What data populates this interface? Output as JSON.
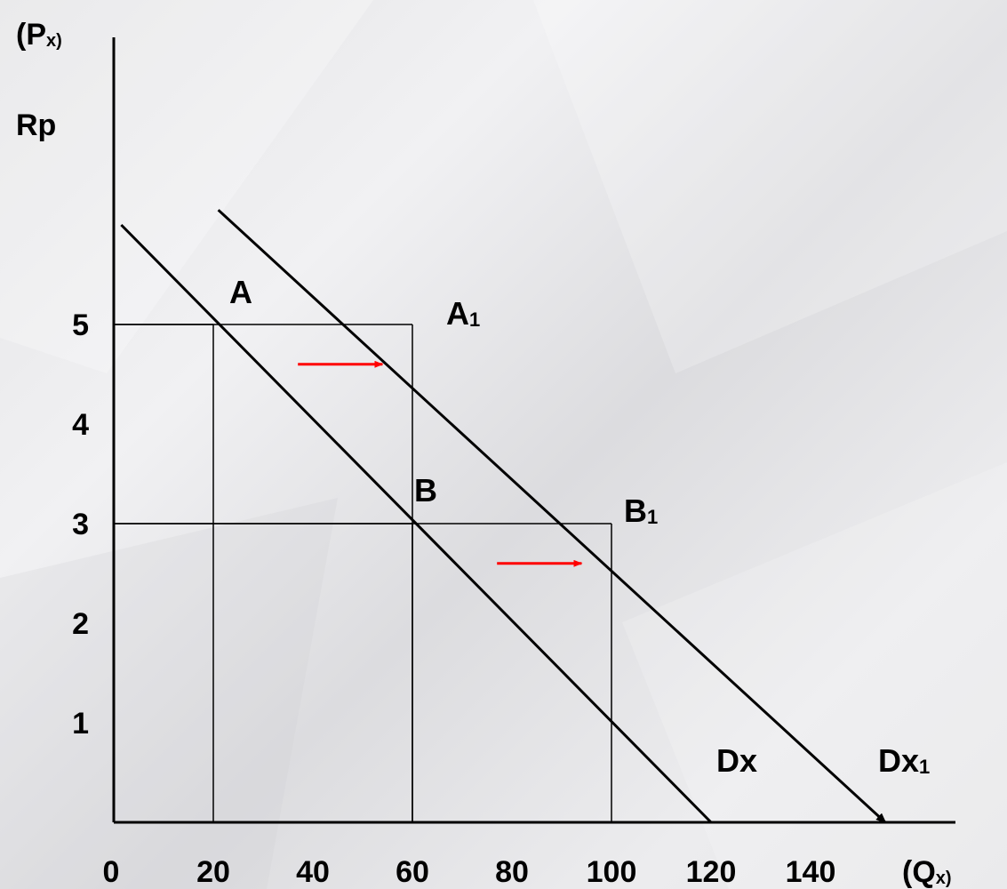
{
  "chart_data": {
    "type": "line",
    "ylabel": {
      "main": "(P",
      "sub": "x)"
    },
    "currency": "Rp",
    "xlabel": {
      "main": "(Q",
      "sub": "x)"
    },
    "x_ticks": [
      "0",
      "20",
      "40",
      "60",
      "80",
      "100",
      "120",
      "140"
    ],
    "y_ticks": [
      "1",
      "2",
      "3",
      "4",
      "5"
    ],
    "xlim": [
      0,
      150
    ],
    "ylim": [
      0,
      6.3
    ],
    "series": [
      {
        "name": "Dx",
        "label_main": "Dx",
        "label_sub": "",
        "points": [
          [
            1.5,
            6.0
          ],
          [
            120,
            0.0
          ]
        ],
        "arrow": false
      },
      {
        "name": "Dx1",
        "label_main": "Dx",
        "label_sub": "1",
        "points": [
          [
            21,
            6.15
          ],
          [
            155,
            0.0
          ]
        ],
        "arrow": true
      }
    ],
    "points": [
      {
        "label_main": "A",
        "label_sub": "",
        "x": 20,
        "y": 5
      },
      {
        "label_main": "A",
        "label_sub": "1",
        "x": 60,
        "y": 5
      },
      {
        "label_main": "B",
        "label_sub": "",
        "x": 60,
        "y": 3
      },
      {
        "label_main": "B",
        "label_sub": "1",
        "x": 100,
        "y": 3
      }
    ],
    "shift_arrows": [
      {
        "from": [
          37,
          4.6
        ],
        "to": [
          54,
          4.6
        ]
      },
      {
        "from": [
          77,
          2.6
        ],
        "to": [
          94,
          2.6
        ]
      }
    ],
    "colors": {
      "axis": "#000000",
      "curve": "#000000",
      "shift_arrow": "#ff0000"
    }
  }
}
